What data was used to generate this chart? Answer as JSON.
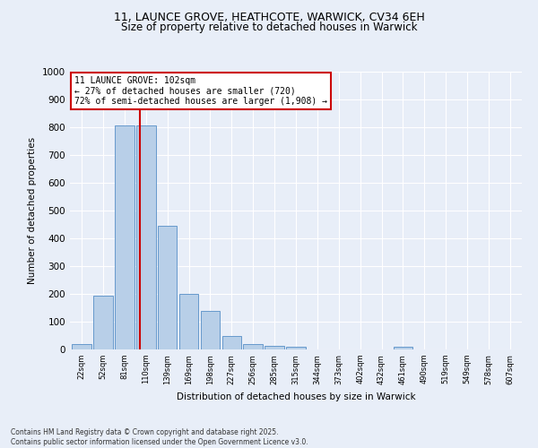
{
  "title_line1": "11, LAUNCE GROVE, HEATHCOTE, WARWICK, CV34 6EH",
  "title_line2": "Size of property relative to detached houses in Warwick",
  "xlabel": "Distribution of detached houses by size in Warwick",
  "ylabel": "Number of detached properties",
  "bar_labels": [
    "22sqm",
    "52sqm",
    "81sqm",
    "110sqm",
    "139sqm",
    "169sqm",
    "198sqm",
    "227sqm",
    "256sqm",
    "285sqm",
    "315sqm",
    "344sqm",
    "373sqm",
    "402sqm",
    "432sqm",
    "461sqm",
    "490sqm",
    "519sqm",
    "549sqm",
    "578sqm",
    "607sqm"
  ],
  "bar_values": [
    18,
    195,
    805,
    805,
    445,
    200,
    140,
    50,
    18,
    12,
    10,
    0,
    0,
    0,
    0,
    10,
    0,
    0,
    0,
    0,
    0
  ],
  "bar_color": "#b8cfe8",
  "bar_edge_color": "#6699cc",
  "vline_color": "#cc0000",
  "annotation_text": "11 LAUNCE GROVE: 102sqm\n← 27% of detached houses are smaller (720)\n72% of semi-detached houses are larger (1,908) →",
  "annotation_box_color": "#ffffff",
  "annotation_box_edge": "#cc0000",
  "ylim": [
    0,
    1000
  ],
  "yticks": [
    0,
    100,
    200,
    300,
    400,
    500,
    600,
    700,
    800,
    900,
    1000
  ],
  "background_color": "#e8eef8",
  "grid_color": "#ffffff",
  "footer_line1": "Contains HM Land Registry data © Crown copyright and database right 2025.",
  "footer_line2": "Contains public sector information licensed under the Open Government Licence v3.0."
}
